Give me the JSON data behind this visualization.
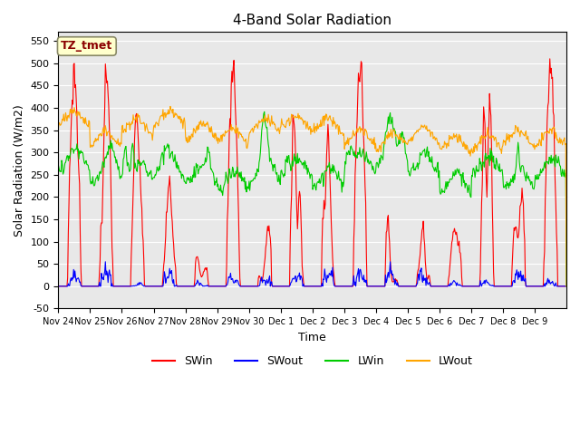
{
  "title": "4-Band Solar Radiation",
  "xlabel": "Time",
  "ylabel": "Solar Radiation (W/m2)",
  "ylim": [
    -50,
    570
  ],
  "yticks": [
    -50,
    0,
    50,
    100,
    150,
    200,
    250,
    300,
    350,
    400,
    450,
    500,
    550
  ],
  "annotation_text": "TZ_tmet",
  "annotation_color": "#8B0000",
  "annotation_bg": "#FFFFCC",
  "bg_color": "#E8E8E8",
  "colors": {
    "SWin": "#FF0000",
    "SWout": "#0000FF",
    "LWin": "#00CC00",
    "LWout": "#FFA500"
  },
  "xtick_labels": [
    "Nov 24",
    "Nov 25",
    "Nov 26",
    "Nov 27",
    "Nov 28",
    "Nov 29",
    "Nov 30",
    "Dec 1",
    "Dec 2",
    "Dec 3",
    "Dec 4",
    "Dec 5",
    "Dec 6",
    "Dec 7",
    "Dec 8",
    "Dec 9"
  ],
  "seed": 42,
  "n_points_per_day": 48,
  "n_days": 16,
  "legend_entries": [
    "SWin",
    "SWout",
    "LWin",
    "LWout"
  ]
}
